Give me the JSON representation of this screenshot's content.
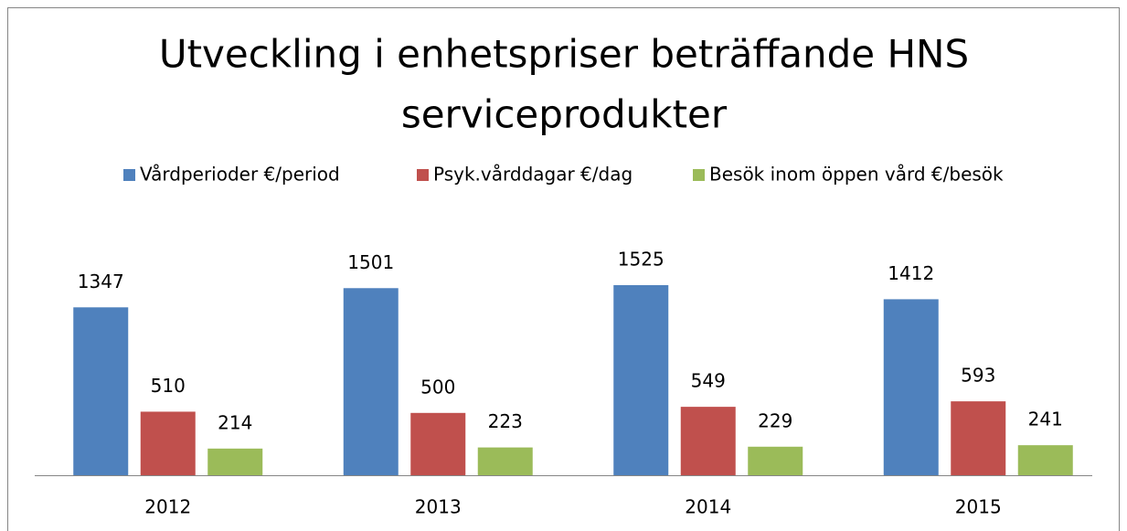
{
  "chart_data": {
    "type": "bar",
    "title": [
      "Utveckling i enhetspriser beträffande HNS",
      "serviceprodukter"
    ],
    "categories": [
      "2012",
      "2013",
      "2014",
      "2015"
    ],
    "series": [
      {
        "name": "Vårdperioder €/period",
        "color": "#4f81bd",
        "values": [
          1347,
          1501,
          1525,
          1412
        ]
      },
      {
        "name": "Psyk.vårddagar €/dag",
        "color": "#c0504d",
        "values": [
          510,
          500,
          549,
          593
        ]
      },
      {
        "name": "Besök inom öppen vård €/besök",
        "color": "#9bbb59",
        "values": [
          214,
          223,
          229,
          241
        ]
      }
    ],
    "legend": "top"
  }
}
